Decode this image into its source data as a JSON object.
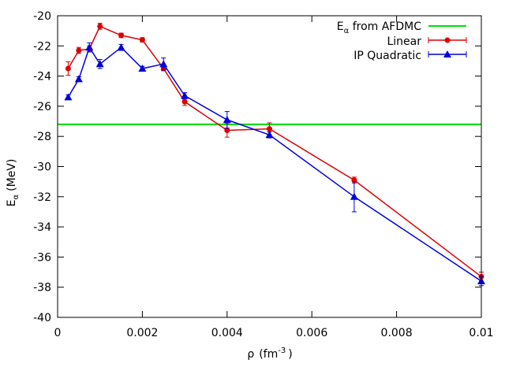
{
  "chart_data": {
    "type": "line",
    "xlabel": {
      "main": "ρ",
      "unit_prefix": "(fm",
      "unit_sup": "-3",
      "unit_suffix": ")"
    },
    "ylabel": {
      "main": "E",
      "sub": "α",
      "unit": "(MeV)"
    },
    "xlim": [
      0,
      0.01
    ],
    "ylim": [
      -40,
      -20
    ],
    "x_ticks": [
      0,
      0.002,
      0.004,
      0.006,
      0.008,
      0.01
    ],
    "x_tick_labels": [
      "0",
      "0.002",
      "0.004",
      "0.006",
      "0.008",
      "0.01"
    ],
    "y_ticks": [
      -40,
      -38,
      -36,
      -34,
      -32,
      -30,
      -28,
      -26,
      -24,
      -22,
      -20
    ],
    "y_tick_labels": [
      "-40",
      "-38",
      "-36",
      "-34",
      "-32",
      "-30",
      "-28",
      "-26",
      "-24",
      "-22",
      "-20"
    ],
    "grid": false,
    "legend_position": "top-right",
    "reference_line": {
      "name_main": "E",
      "name_sub": "α",
      "name_rest": " from AFDMC",
      "y": -27.2,
      "color": "#00dd00"
    },
    "series": [
      {
        "name": "Linear",
        "color": "#dd0000",
        "marker": "circle",
        "points": [
          {
            "x": 0.00025,
            "y": -23.5,
            "err": 0.45
          },
          {
            "x": 0.0005,
            "y": -22.3,
            "err": 0.2
          },
          {
            "x": 0.00075,
            "y": -22.2,
            "err": 0.2
          },
          {
            "x": 0.001,
            "y": -20.7,
            "err": 0.2
          },
          {
            "x": 0.0015,
            "y": -21.3,
            "err": 0.15
          },
          {
            "x": 0.002,
            "y": -21.6,
            "err": 0.15
          },
          {
            "x": 0.0025,
            "y": -23.5,
            "err": 0.15
          },
          {
            "x": 0.003,
            "y": -25.7,
            "err": 0.25
          },
          {
            "x": 0.004,
            "y": -27.6,
            "err": 0.45
          },
          {
            "x": 0.005,
            "y": -27.5,
            "err": 0.4
          },
          {
            "x": 0.007,
            "y": -30.9,
            "err": 0.2
          },
          {
            "x": 0.01,
            "y": -37.3,
            "err": 0.3
          }
        ]
      },
      {
        "name": "IP Quadratic",
        "color": "#0000dd",
        "marker": "triangle",
        "points": [
          {
            "x": 0.00025,
            "y": -25.4,
            "err": 0.15
          },
          {
            "x": 0.0005,
            "y": -24.2,
            "err": 0.15
          },
          {
            "x": 0.00075,
            "y": -22.1,
            "err": 0.3
          },
          {
            "x": 0.001,
            "y": -23.2,
            "err": 0.3
          },
          {
            "x": 0.0015,
            "y": -22.1,
            "err": 0.2
          },
          {
            "x": 0.002,
            "y": -23.5,
            "err": 0.15
          },
          {
            "x": 0.0025,
            "y": -23.2,
            "err": 0.4
          },
          {
            "x": 0.003,
            "y": -25.3,
            "err": 0.2
          },
          {
            "x": 0.004,
            "y": -26.9,
            "err": 0.55
          },
          {
            "x": 0.005,
            "y": -27.9,
            "err": 0.2
          },
          {
            "x": 0.007,
            "y": -32.0,
            "err": 1.0
          },
          {
            "x": 0.01,
            "y": -37.6,
            "err": 0.3
          }
        ]
      }
    ]
  }
}
